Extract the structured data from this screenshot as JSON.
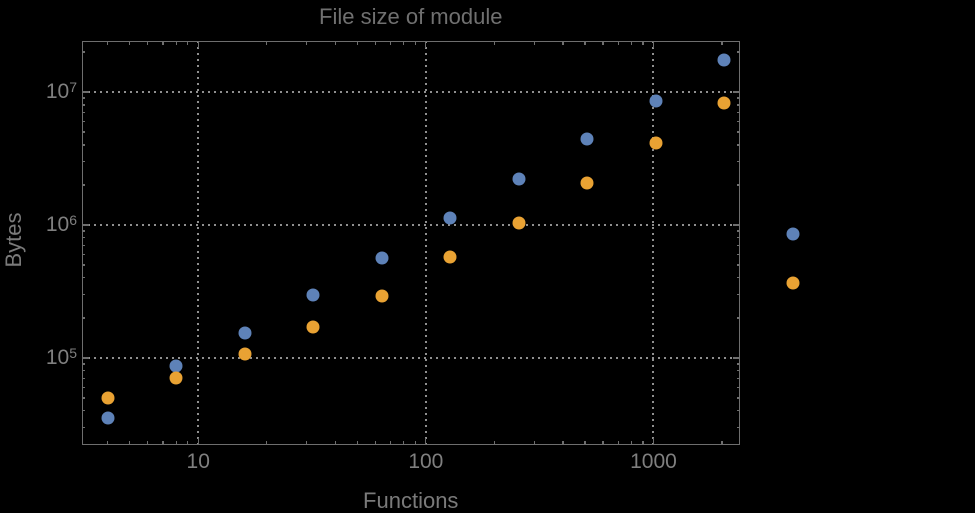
{
  "chart_data": {
    "type": "scatter",
    "title": "File size of module",
    "xlabel": "Functions",
    "ylabel": "Bytes",
    "x_scale": "log",
    "y_scale": "log",
    "xlim": [
      3.07,
      2400
    ],
    "ylim": [
      22300,
      24200000
    ],
    "grid": {
      "x": [
        10,
        100,
        1000
      ],
      "y": [
        100000,
        1000000,
        10000000
      ],
      "style": "dotted"
    },
    "legend": "none",
    "note": "last pair of points (x=4096) is drawn outside the right edge of the plot frame",
    "x": [
      4,
      8,
      16,
      32,
      64,
      128,
      256,
      512,
      1024,
      2048,
      4096
    ],
    "series": [
      {
        "name": "blue",
        "color": "#5E82B8",
        "values": [
          35000,
          87000,
          155000,
          296000,
          560000,
          1130000,
          2200000,
          4400000,
          8600000,
          17300000,
          850000
        ]
      },
      {
        "name": "orange",
        "color": "#E9A233",
        "values": [
          50000,
          70000,
          107000,
          172000,
          290000,
          570000,
          1040000,
          2080000,
          4100000,
          8200000,
          365000
        ]
      }
    ],
    "x_ticks": [
      {
        "value": 10,
        "label": "10"
      },
      {
        "value": 100,
        "label": "100"
      },
      {
        "value": 1000,
        "label": "1000"
      }
    ],
    "y_ticks": [
      {
        "value": 100000,
        "base": "10",
        "exponent": "5"
      },
      {
        "value": 1000000,
        "base": "10",
        "exponent": "6"
      },
      {
        "value": 10000000,
        "base": "10",
        "exponent": "7"
      }
    ]
  },
  "colors": {
    "background": "#000000",
    "frame": "#6E6E6E",
    "grid": "#8F8F8F",
    "tick_label": "#7F7F7F",
    "title": "#707070",
    "axis_label": "#7A7A7A"
  }
}
